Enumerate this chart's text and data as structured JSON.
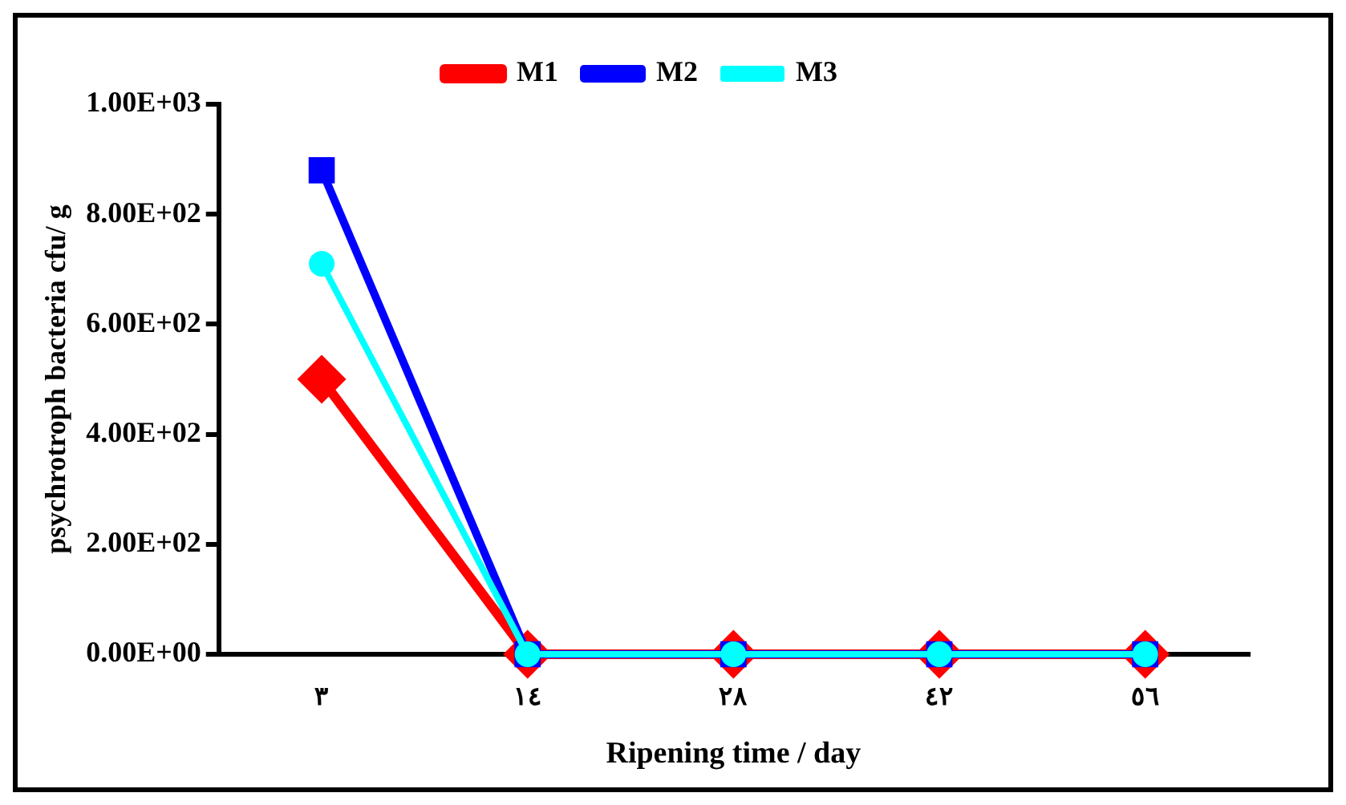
{
  "chart_data": {
    "type": "line",
    "xlabel": "Ripening time / day",
    "ylabel": "psychrotroph bacteria cfu/ g",
    "categories": [
      "٣",
      "١٤",
      "٢٨",
      "٤٢",
      "٥٦"
    ],
    "series": [
      {
        "name": "M1",
        "color": "#ff0000",
        "marker": "diamond",
        "values": [
          500,
          0,
          0,
          0,
          0
        ]
      },
      {
        "name": "M2",
        "color": "#0000ff",
        "marker": "square",
        "values": [
          880,
          0,
          0,
          0,
          0
        ]
      },
      {
        "name": "M3",
        "color": "#00ffff",
        "marker": "circle",
        "values": [
          710,
          0,
          0,
          0,
          0
        ]
      }
    ],
    "ylim": [
      0,
      1000
    ],
    "yticks": [
      {
        "value": 0,
        "label": "0.00E+00"
      },
      {
        "value": 200,
        "label": "2.00E+02"
      },
      {
        "value": 400,
        "label": "4.00E+02"
      },
      {
        "value": 600,
        "label": "6.00E+02"
      },
      {
        "value": 800,
        "label": "8.00E+02"
      },
      {
        "value": 1000,
        "label": "1.00E+03"
      }
    ],
    "grid": false,
    "legend": "top"
  }
}
